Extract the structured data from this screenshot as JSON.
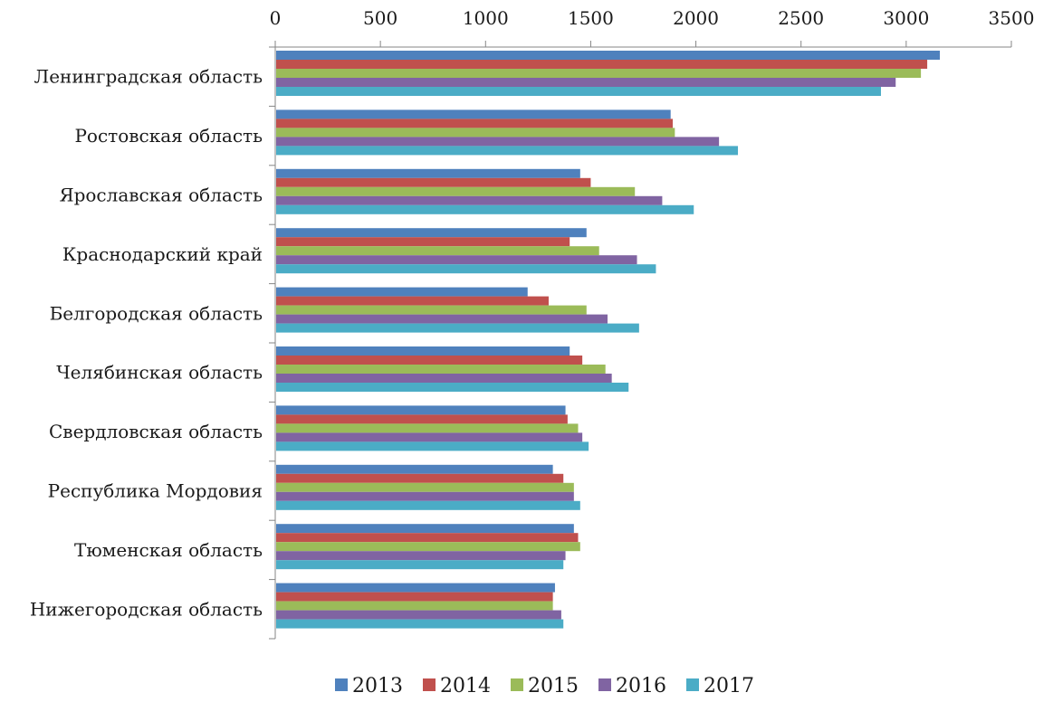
{
  "chart_data": {
    "type": "bar",
    "orientation": "horizontal",
    "title": "",
    "xlabel": "",
    "ylabel": "",
    "xlim": [
      0,
      3500
    ],
    "x_ticks": [
      0,
      500,
      1000,
      1500,
      2000,
      2500,
      3000,
      3500
    ],
    "x_axis_position": "top",
    "grid": false,
    "legend_position": "bottom",
    "categories": [
      "Ленинградская область",
      "Ростовская область",
      "Ярославская область",
      "Краснодарский край",
      "Белгородская область",
      "Челябинская область",
      "Свердловская область",
      "Республика Мордовия",
      "Тюменская область",
      "Нижегородская область"
    ],
    "series": [
      {
        "name": "2013",
        "color": "#4f81bd",
        "values": [
          3160,
          1880,
          1450,
          1480,
          1200,
          1400,
          1380,
          1320,
          1420,
          1330
        ]
      },
      {
        "name": "2014",
        "color": "#c0504d",
        "values": [
          3100,
          1890,
          1500,
          1400,
          1300,
          1460,
          1390,
          1370,
          1440,
          1320
        ]
      },
      {
        "name": "2015",
        "color": "#9bbb59",
        "values": [
          3070,
          1900,
          1710,
          1540,
          1480,
          1570,
          1440,
          1420,
          1450,
          1320
        ]
      },
      {
        "name": "2016",
        "color": "#8064a2",
        "values": [
          2950,
          2110,
          1840,
          1720,
          1580,
          1600,
          1460,
          1420,
          1380,
          1360
        ]
      },
      {
        "name": "2017",
        "color": "#4bacc6",
        "values": [
          2880,
          2200,
          1990,
          1810,
          1730,
          1680,
          1490,
          1450,
          1370,
          1370
        ]
      }
    ]
  }
}
